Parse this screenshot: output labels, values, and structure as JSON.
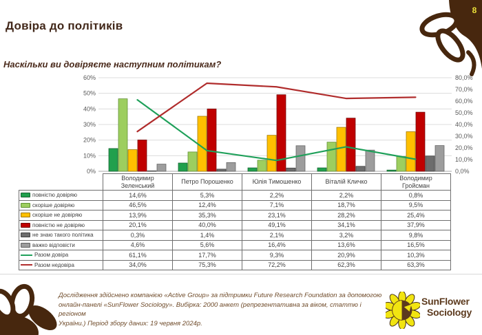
{
  "page": {
    "title": "Довіра до політиків",
    "page_number": "8",
    "subtitle": "Наскільки ви довіряєте наступним політикам?"
  },
  "footer": {
    "line1": "Дослідження здійснено компанією «Active Group» за підтримки Future Research Foundation за допомогою",
    "line2": "онлайн-панелі «SunFlower Sociology». Вибірка: 2000 анкет (репрезентативна за віком, статтю і регіоном",
    "line3": "України.) Період збору даних: 19 червня 2024р.",
    "logo_line1": "SunFlower",
    "logo_line2": "Sociology"
  },
  "colors": {
    "brand_brown": "#47270e",
    "title_brown": "#42281a",
    "footer_brown": "#6f4b2a",
    "logo_yellow": "#f1e411",
    "page_number_yellow": "#ece239",
    "gridline": "#dcdcdc",
    "axis_text": "#595959",
    "table_border": "#6e6e6e"
  },
  "chart_data": {
    "type": "bar+line combo (clustered bars on left axis, lines on right axis)",
    "categories": [
      "Володимир Зеленський",
      "Петро Порошенко",
      "Юлія Тимошенко",
      "Віталій Кличко",
      "Володимир Гройсман"
    ],
    "series": [
      {
        "name": "повністю довіряю",
        "type": "bar",
        "color": "#21a04d",
        "border": "#14602f",
        "values": [
          14.6,
          5.3,
          2.2,
          2.2,
          0.8
        ]
      },
      {
        "name": "скоріше довіряю",
        "type": "bar",
        "color": "#9dce5f",
        "border": "#5e8f32",
        "values": [
          46.5,
          12.4,
          7.1,
          18.7,
          9.5
        ]
      },
      {
        "name": "скоріше не довіряю",
        "type": "bar",
        "color": "#ffc000",
        "border": "#9c7500",
        "values": [
          13.9,
          35.3,
          23.1,
          28.2,
          25.4
        ]
      },
      {
        "name": "повністю не довіряю",
        "type": "bar",
        "color": "#c00000",
        "border": "#700000",
        "values": [
          20.1,
          40.0,
          49.1,
          34.1,
          37.9
        ]
      },
      {
        "name": "не знаю такого політика",
        "type": "bar",
        "color": "#6d6d6d",
        "border": "#3f3f3f",
        "values": [
          0.3,
          1.4,
          2.1,
          3.2,
          9.8
        ]
      },
      {
        "name": "важко відповісти",
        "type": "bar",
        "color": "#9d9d9d",
        "border": "#606060",
        "values": [
          4.6,
          5.6,
          16.4,
          13.6,
          16.5
        ]
      },
      {
        "name": "Разом довіра",
        "type": "line",
        "color": "#1fa05a",
        "border": "#1fa05a",
        "values": [
          61.1,
          17.7,
          9.3,
          20.9,
          10.3
        ]
      },
      {
        "name": "Разом недовіра",
        "type": "line",
        "color": "#b02c2c",
        "border": "#b02c2c",
        "values": [
          34.0,
          75.3,
          72.2,
          62.3,
          63.3
        ]
      }
    ],
    "left_axis": {
      "min": 0,
      "max": 60,
      "step": 10,
      "labels": [
        "0%",
        "10%",
        "20%",
        "30%",
        "40%",
        "50%",
        "60%"
      ]
    },
    "right_axis": {
      "min": 0,
      "max": 80,
      "step": 10,
      "labels": [
        "0,0%",
        "10,0%",
        "20,0%",
        "30,0%",
        "40,0%",
        "50,0%",
        "60,0%",
        "70,0%",
        "80,0%"
      ]
    },
    "grid": "horizontal only",
    "legend_position": "data table rows at left of table below chart",
    "value_format": "decimal comma + percent, e.g. 14,6%"
  }
}
